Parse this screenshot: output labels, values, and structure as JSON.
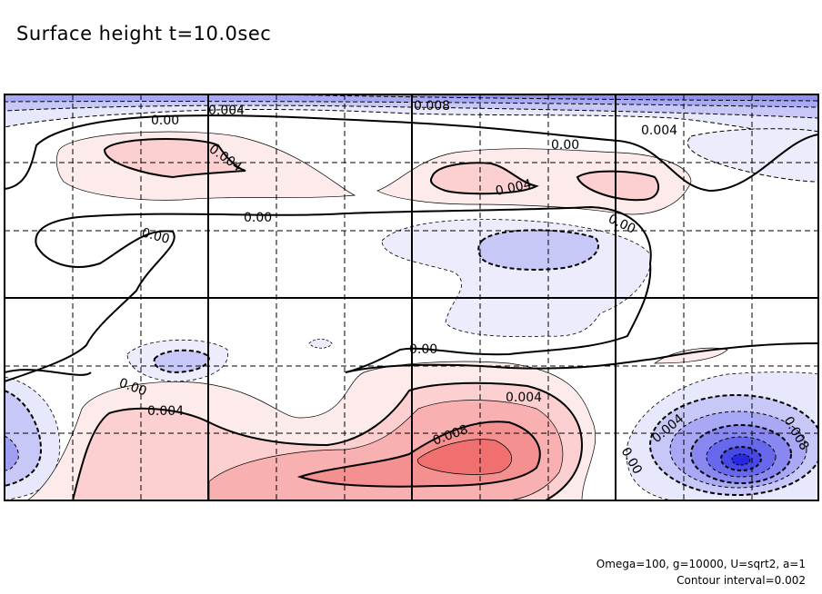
{
  "chart_data": {
    "type": "heatmap",
    "subtype": "filled-contour",
    "title": "Surface height t=10.0sec",
    "annotations": [
      "Omega=100, g=10000, U=sqrt2, a=1",
      "Contour interval=0.002"
    ],
    "contour_interval": 0.002,
    "grid": true,
    "colors": {
      "negative": "#4040e8",
      "positive": "#f07070",
      "zero": "#ffffff"
    },
    "value_range": [
      -0.014,
      0.01
    ],
    "contour_labels": [
      "0.00",
      "0.004",
      "0.004",
      "0.008",
      "0.004",
      "0.00",
      "0.004",
      "0.00",
      "0.00",
      "0.00",
      "0.00",
      "0.00",
      "0.004",
      "0.004",
      "0.008",
      "0.004",
      "0.008",
      "0.00"
    ]
  }
}
